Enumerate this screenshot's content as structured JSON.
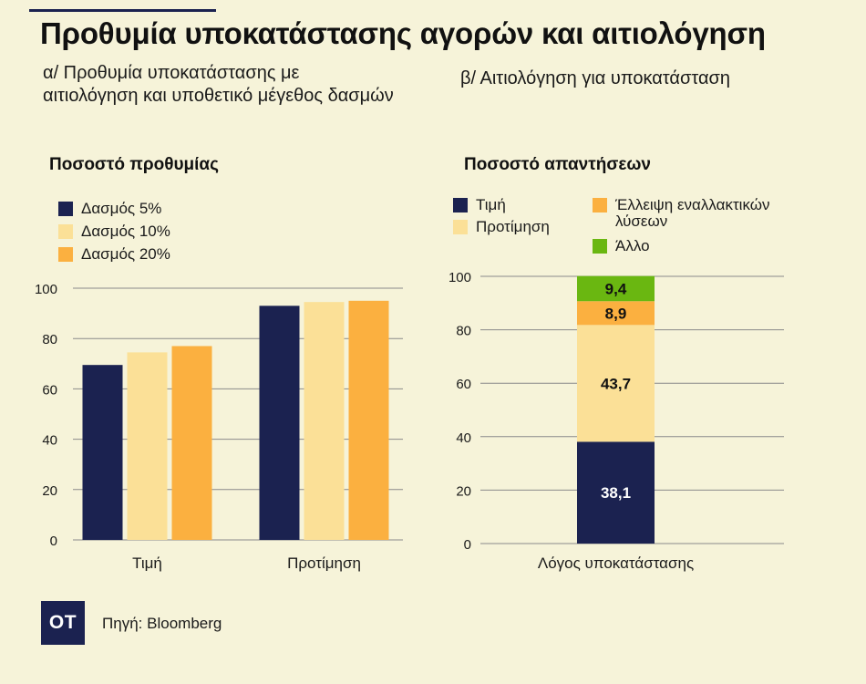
{
  "title": "Προθυμία υποκατάστασης αγορών και αιτιολόγηση",
  "source": "Πηγή: Bloomberg",
  "logo_text": "OT",
  "colors": {
    "navy": "#1b2250",
    "light_yellow": "#fbe097",
    "orange": "#fbb040",
    "green": "#6ab711",
    "background": "#f6f3d9"
  },
  "chart_data": [
    {
      "type": "bar",
      "subtitle": "α/ Προθυμία υποκατάστασης με αιτιολόγηση και υποθετικό μέγεθος δασμών",
      "ylabel": "Ποσοστό προθυμίας",
      "xlabel": "",
      "categories": [
        "Τιμή",
        "Προτίμηση"
      ],
      "series": [
        {
          "name": "Δασμός 5%",
          "color": "#1b2250",
          "values": [
            69.5,
            93
          ]
        },
        {
          "name": "Δασμός 10%",
          "color": "#fbe097",
          "values": [
            74.5,
            94.5
          ]
        },
        {
          "name": "Δασμός 20%",
          "color": "#fbb040",
          "values": [
            77,
            95
          ]
        }
      ],
      "ylim": [
        0,
        100
      ],
      "yticks": [
        0,
        20,
        40,
        60,
        80,
        100
      ],
      "grid": true,
      "legend": "top-left"
    },
    {
      "type": "bar",
      "stacked": true,
      "subtitle": "β/ Αιτιολόγηση για υποκατάσταση",
      "ylabel": "Ποσοστό απαντήσεων",
      "xlabel": "",
      "categories": [
        "Λόγος υποκατάστασης"
      ],
      "series": [
        {
          "name": "Τιμή",
          "color": "#1b2250",
          "values": [
            38.1
          ],
          "labels": [
            "38,1"
          ]
        },
        {
          "name": "Προτίμηση",
          "color": "#fbe097",
          "values": [
            43.7
          ],
          "labels": [
            "43,7"
          ]
        },
        {
          "name": "Έλλειψη εναλλακτικών λύσεων",
          "color": "#fbb040",
          "values": [
            8.9
          ],
          "labels": [
            "8,9"
          ]
        },
        {
          "name": "Άλλο",
          "color": "#6ab711",
          "values": [
            9.4
          ],
          "labels": [
            "9,4"
          ]
        }
      ],
      "ylim": [
        0,
        100
      ],
      "yticks": [
        0,
        20,
        40,
        60,
        80,
        100
      ],
      "grid": true,
      "legend": "top"
    }
  ]
}
